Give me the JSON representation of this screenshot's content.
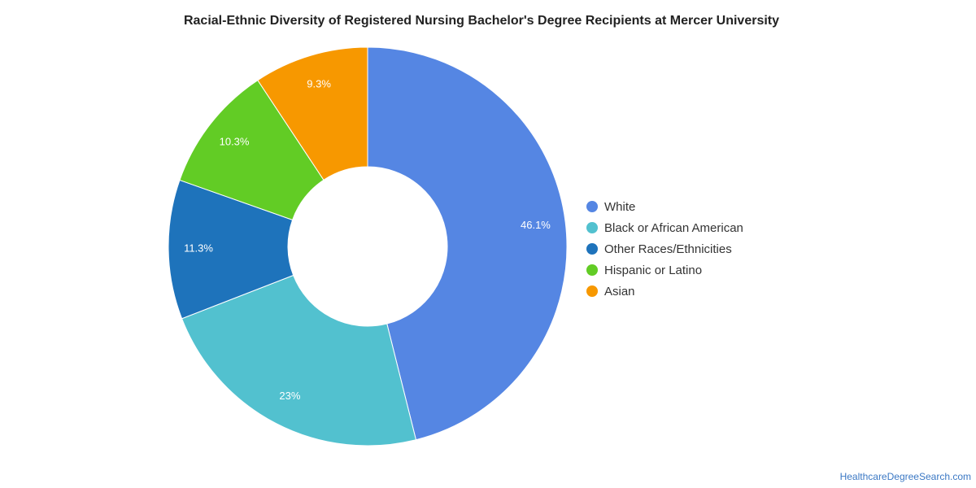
{
  "chart_data": {
    "type": "pie",
    "style": "donut",
    "title": "Racial-Ethnic Diversity of Registered Nursing Bachelor's Degree Recipients at Mercer University",
    "slices": [
      {
        "name": "White",
        "value": 46.1,
        "label": "46.1%",
        "color": "#5586e3"
      },
      {
        "name": "Black or African American",
        "value": 23,
        "label": "23%",
        "color": "#52c1cf"
      },
      {
        "name": "Other Races/Ethnicities",
        "value": 11.3,
        "label": "11.3%",
        "color": "#1e73bb"
      },
      {
        "name": "Hispanic or Latino",
        "value": 10.3,
        "label": "10.3%",
        "color": "#62cc25"
      },
      {
        "name": "Asian",
        "value": 9.3,
        "label": "9.3%",
        "color": "#f79800"
      }
    ],
    "legend_position": "right"
  },
  "credit": "HealthcareDegreeSearch.com"
}
